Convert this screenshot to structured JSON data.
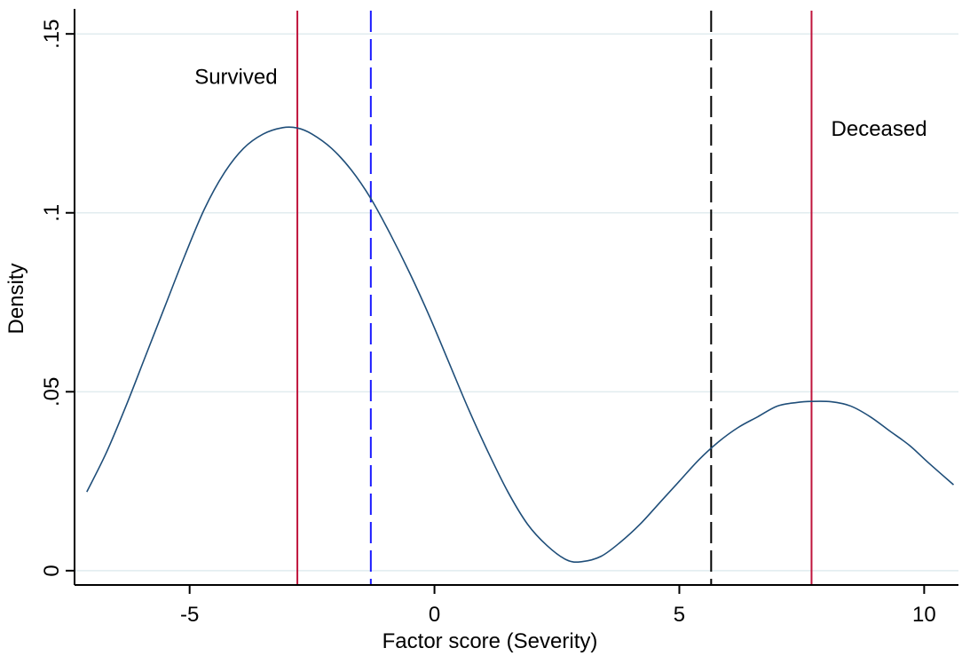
{
  "chart_data": {
    "type": "line",
    "title": "",
    "xlabel": "Factor score (Severity)",
    "ylabel": "Density",
    "xlim": [
      -7.35,
      10.7
    ],
    "ylim": [
      -0.004,
      0.156
    ],
    "grid": true,
    "legend": "none",
    "x_ticks": [
      {
        "value": -5,
        "label": "-5"
      },
      {
        "value": 0,
        "label": "0"
      },
      {
        "value": 5,
        "label": "5"
      },
      {
        "value": 10,
        "label": "10"
      }
    ],
    "y_ticks": [
      {
        "value": 0,
        "label": "0"
      },
      {
        "value": 0.05,
        "label": ".05"
      },
      {
        "value": 0.1,
        "label": ".1"
      },
      {
        "value": 0.15,
        "label": ".15"
      }
    ],
    "series": [
      {
        "color": "#1f4e79",
        "x": [
          -7.1,
          -6.7,
          -6.3,
          -5.9,
          -5.5,
          -5.1,
          -4.7,
          -4.3,
          -3.9,
          -3.5,
          -3.1,
          -2.8,
          -2.5,
          -2.1,
          -1.7,
          -1.3,
          -0.9,
          -0.5,
          -0.1,
          0.3,
          0.7,
          1.1,
          1.5,
          1.9,
          2.3,
          2.7,
          3.0,
          3.4,
          3.8,
          4.2,
          4.6,
          5.0,
          5.4,
          5.8,
          6.2,
          6.6,
          7.0,
          7.4,
          7.7,
          8.1,
          8.5,
          8.9,
          9.3,
          9.7,
          10.1,
          10.6
        ],
        "y": [
          0.022,
          0.033,
          0.046,
          0.06,
          0.074,
          0.088,
          0.101,
          0.111,
          0.118,
          0.122,
          0.1238,
          0.1237,
          0.122,
          0.118,
          0.112,
          0.104,
          0.094,
          0.083,
          0.071,
          0.058,
          0.045,
          0.033,
          0.022,
          0.013,
          0.007,
          0.003,
          0.0025,
          0.004,
          0.008,
          0.013,
          0.019,
          0.025,
          0.031,
          0.036,
          0.04,
          0.043,
          0.046,
          0.047,
          0.0473,
          0.0472,
          0.046,
          0.043,
          0.039,
          0.035,
          0.03,
          0.024
        ]
      }
    ],
    "vlines": [
      {
        "x": -2.8,
        "color": "#c0143c",
        "style": "solid"
      },
      {
        "x": -1.3,
        "color": "#1a1aff",
        "style": "dashed"
      },
      {
        "x": 5.65,
        "color": "#000000",
        "style": "dashed"
      },
      {
        "x": 7.7,
        "color": "#c0143c",
        "style": "solid"
      }
    ],
    "annotations": [
      {
        "text": "Survived",
        "x": -4.9,
        "y": 0.136
      },
      {
        "text": "Deceased",
        "x": 8.1,
        "y": 0.1215
      }
    ]
  }
}
